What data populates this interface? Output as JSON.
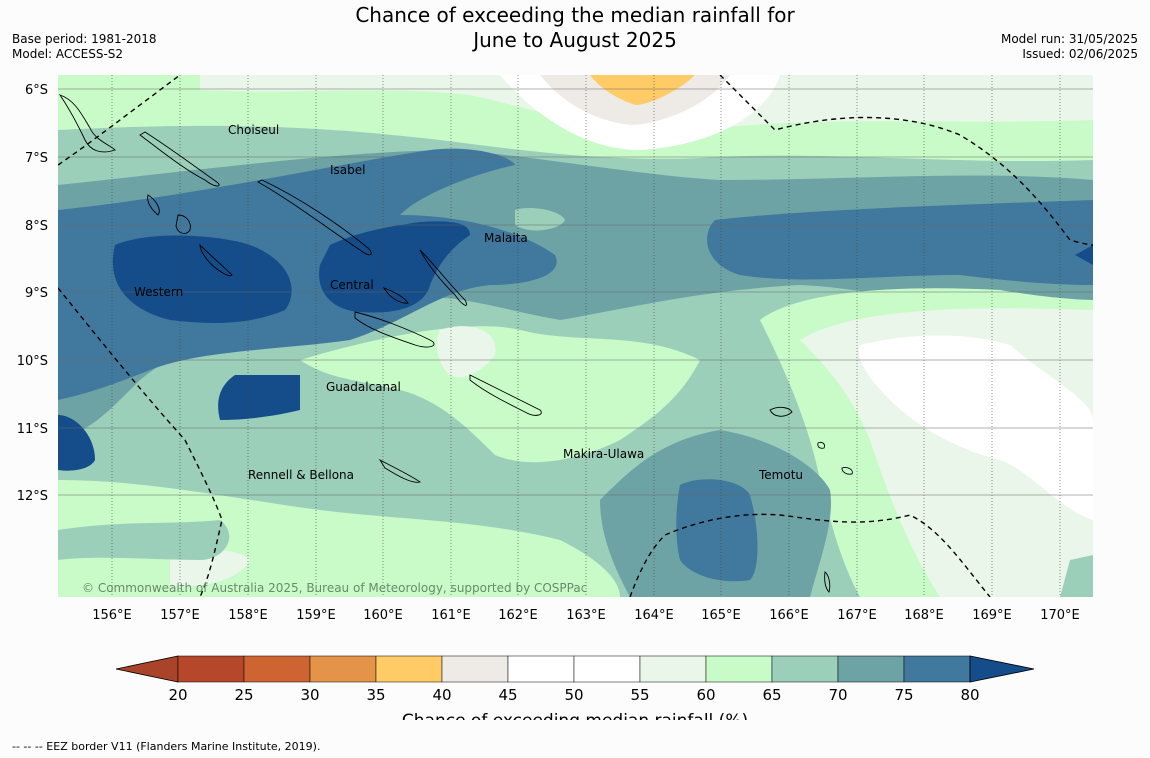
{
  "header": {
    "title_line1": "Chance of exceeding the median rainfall for",
    "title_line2": "June to August 2025",
    "base_period": "Base period: 1981-2018",
    "model": "Model: ACCESS-S2",
    "model_run": "Model run: 31/05/2025",
    "issued": "Issued: 02/06/2025"
  },
  "map": {
    "lat_labels": [
      "6°S",
      "7°S",
      "8°S",
      "9°S",
      "10°S",
      "11°S",
      "12°S"
    ],
    "lon_labels": [
      "156°E",
      "157°E",
      "158°E",
      "159°E",
      "160°E",
      "161°E",
      "162°E",
      "163°E",
      "164°E",
      "165°E",
      "166°E",
      "167°E",
      "168°E",
      "169°E",
      "170°E"
    ],
    "regions": {
      "choiseul": "Choiseul",
      "isabel": "Isabel",
      "malaita": "Malaita",
      "central": "Central",
      "western": "Western",
      "guadalcanal": "Guadalcanal",
      "makira": "Makira-Ulawa",
      "rennell": "Rennell & Bellona",
      "temotu": "Temotu"
    },
    "copyright": "© Commonwealth of Australia 2025, Bureau of Meteorology, supported by COSPPac"
  },
  "colorbar": {
    "colors": [
      "#a9432a",
      "#b5482a",
      "#cf6433",
      "#e39448",
      "#fecb67",
      "#eeebe6",
      "#ffffff",
      "#ffffff",
      "#eaf6ea",
      "#c9fbc9",
      "#9ccfba",
      "#6ea3a6",
      "#41799e",
      "#144d8a"
    ],
    "ticks": [
      "20",
      "25",
      "30",
      "35",
      "40",
      "45",
      "50",
      "55",
      "60",
      "65",
      "70",
      "75",
      "80"
    ],
    "label": "Chance of exceeding median rainfall (%)"
  },
  "footnote": "--  --  -- EEZ border V11 (Flanders Marine Institute, 2019)."
}
